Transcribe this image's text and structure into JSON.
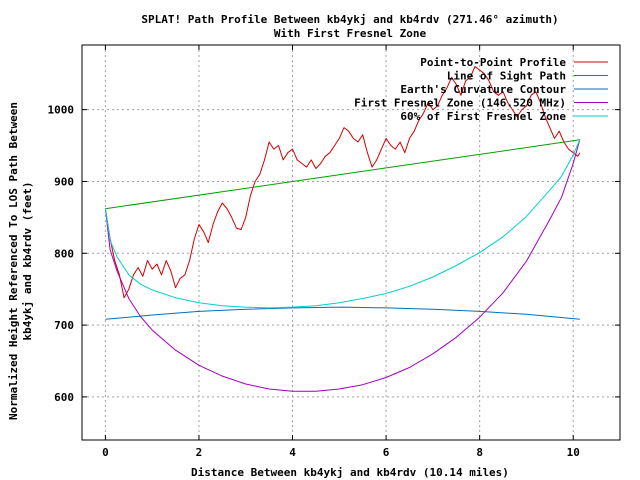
{
  "chart_data": {
    "type": "line",
    "title": "SPLAT! Path Profile Between kb4ykj and kb4rdv (271.46° azimuth)",
    "subtitle": "With First Fresnel Zone",
    "xlabel": "Distance Between kb4ykj and kb4rdv (10.14 miles)",
    "ylabel": "Normalized Height Referenced To LOS Path Between",
    "ylabel2": "kb4ykj and kb4rdv (feet)",
    "xlim": [
      -0.5,
      11.0
    ],
    "ylim": [
      540,
      1090
    ],
    "xticks": [
      0,
      2,
      4,
      6,
      8,
      10
    ],
    "yticks": [
      600,
      700,
      800,
      900,
      1000
    ],
    "grid": true,
    "legend_position": "top-right",
    "series": [
      {
        "name": "Point-to-Point Profile",
        "color": "#d40000",
        "x": [
          0.0,
          0.1,
          0.2,
          0.3,
          0.4,
          0.5,
          0.6,
          0.7,
          0.8,
          0.9,
          1.0,
          1.1,
          1.2,
          1.3,
          1.4,
          1.5,
          1.6,
          1.7,
          1.8,
          1.9,
          2.0,
          2.1,
          2.2,
          2.3,
          2.4,
          2.5,
          2.6,
          2.7,
          2.8,
          2.9,
          3.0,
          3.1,
          3.2,
          3.3,
          3.4,
          3.5,
          3.6,
          3.7,
          3.8,
          3.9,
          4.0,
          4.1,
          4.2,
          4.3,
          4.4,
          4.5,
          4.6,
          4.7,
          4.8,
          4.9,
          5.0,
          5.1,
          5.2,
          5.3,
          5.4,
          5.5,
          5.6,
          5.7,
          5.8,
          5.9,
          6.0,
          6.1,
          6.2,
          6.3,
          6.4,
          6.5,
          6.6,
          6.7,
          6.8,
          6.9,
          7.0,
          7.1,
          7.2,
          7.3,
          7.4,
          7.5,
          7.6,
          7.7,
          7.8,
          7.9,
          8.0,
          8.1,
          8.2,
          8.3,
          8.4,
          8.5,
          8.6,
          8.7,
          8.8,
          8.9,
          9.0,
          9.1,
          9.2,
          9.3,
          9.4,
          9.5,
          9.6,
          9.7,
          9.8,
          9.9,
          10.0,
          10.1,
          10.14
        ],
        "y": [
          862,
          820,
          790,
          770,
          738,
          750,
          770,
          780,
          768,
          790,
          778,
          785,
          770,
          790,
          775,
          752,
          765,
          770,
          790,
          820,
          840,
          830,
          815,
          840,
          858,
          870,
          862,
          850,
          835,
          833,
          850,
          880,
          900,
          910,
          930,
          955,
          945,
          950,
          930,
          940,
          945,
          930,
          925,
          920,
          930,
          918,
          925,
          935,
          940,
          950,
          960,
          975,
          970,
          960,
          955,
          965,
          940,
          920,
          930,
          945,
          960,
          950,
          945,
          955,
          940,
          960,
          970,
          985,
          995,
          1010,
          1000,
          1005,
          1020,
          1030,
          1045,
          1035,
          1020,
          1040,
          1045,
          1060,
          1055,
          1050,
          1040,
          1025,
          1020,
          1025,
          1010,
          1000,
          990,
          1000,
          1005,
          1020,
          1025,
          1010,
          990,
          975,
          960,
          970,
          955,
          945,
          940,
          935,
          940
        ]
      },
      {
        "name": "Line of Sight Path",
        "color": "#00a000",
        "x": [
          0.0,
          10.14
        ],
        "y": [
          862,
          958
        ]
      },
      {
        "name": "Earth's Curvature Contour",
        "color": "#0070c0",
        "x": [
          0.0,
          1.0,
          2.0,
          3.0,
          4.0,
          5.07,
          6.0,
          7.0,
          8.0,
          9.0,
          10.14
        ],
        "y": [
          708,
          714,
          719,
          722,
          724,
          725,
          724,
          722,
          719,
          715,
          708
        ]
      },
      {
        "name": "First Fresnel Zone (146.520 MHz)",
        "color": "#a000c0",
        "x": [
          0.0,
          0.1,
          0.25,
          0.5,
          0.75,
          1.0,
          1.5,
          2.0,
          2.5,
          3.0,
          3.5,
          4.0,
          4.5,
          5.0,
          5.5,
          6.0,
          6.5,
          7.0,
          7.5,
          8.0,
          8.5,
          9.0,
          9.5,
          9.75,
          10.0,
          10.14
        ],
        "y": [
          862,
          805,
          775,
          737,
          712,
          693,
          665,
          644,
          629,
          618,
          611,
          608,
          608,
          611,
          617,
          627,
          641,
          660,
          683,
          711,
          745,
          789,
          847,
          878,
          925,
          958
        ]
      },
      {
        "name": "60% of First Fresnel Zone",
        "color": "#00d0d0",
        "x": [
          0.0,
          0.1,
          0.25,
          0.5,
          0.75,
          1.0,
          1.5,
          2.0,
          2.5,
          3.0,
          3.5,
          4.0,
          4.5,
          5.0,
          5.5,
          6.0,
          6.5,
          7.0,
          7.5,
          8.0,
          8.5,
          9.0,
          9.5,
          9.75,
          10.0,
          10.14
        ],
        "y": [
          862,
          818,
          795,
          770,
          757,
          749,
          738,
          731,
          727,
          725,
          724,
          725,
          727,
          731,
          737,
          744,
          754,
          767,
          783,
          801,
          823,
          851,
          888,
          907,
          937,
          958
        ]
      }
    ]
  }
}
